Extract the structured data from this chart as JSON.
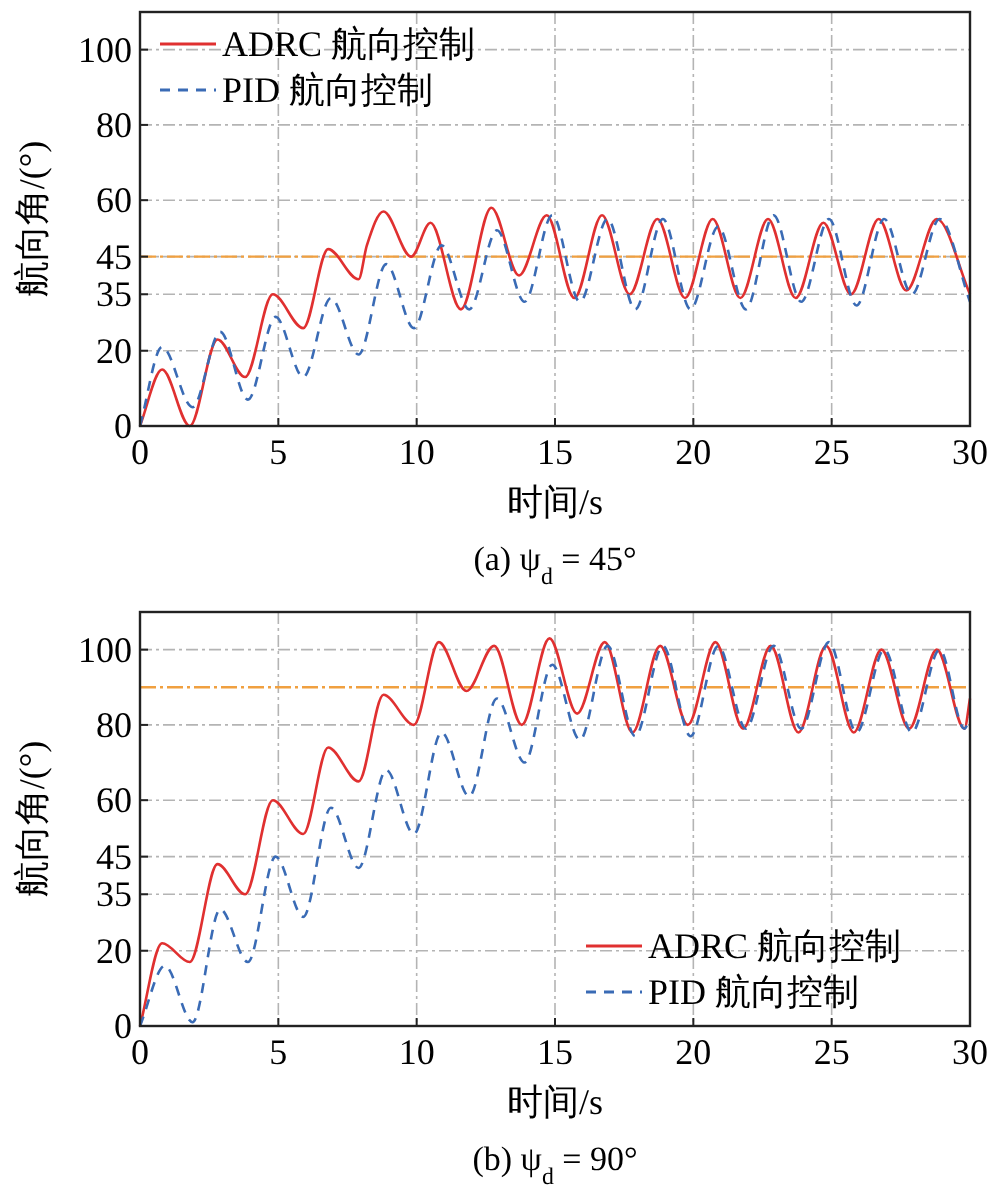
{
  "chart_data": [
    {
      "type": "line",
      "title": "(a) ψ$_{d}$ = 45°",
      "xlabel": "时间/s",
      "ylabel": "航向角/(°)",
      "xlim": [
        0,
        30
      ],
      "xticks": [
        0,
        5,
        10,
        15,
        20,
        25,
        30
      ],
      "ylim": [
        0,
        110
      ],
      "yticks": [
        0,
        20,
        35,
        45,
        60,
        80,
        100
      ],
      "grid": true,
      "legend": "top left",
      "ref_lines": [
        {
          "axis": "y",
          "value": 45,
          "color": "#f0a040"
        }
      ],
      "series": [
        {
          "name": "ADRC 航向控制",
          "color": "#e03030",
          "line_style": "solid",
          "x": [
            0,
            0.8,
            1.8,
            2.8,
            3.8,
            4.8,
            5.9,
            6.8,
            7.9,
            8.2,
            8.8,
            9.8,
            10.5,
            11.6,
            12.7,
            13.7,
            14.7,
            15.7,
            16.7,
            17.7,
            18.7,
            19.7,
            20.7,
            21.7,
            22.7,
            23.7,
            24.7,
            25.7,
            26.7,
            27.7,
            28.8,
            30
          ],
          "values": [
            0,
            15,
            0,
            23,
            13,
            35,
            26,
            47,
            39,
            48,
            57,
            45,
            54,
            31,
            58,
            40,
            56,
            34,
            56,
            35,
            55,
            34,
            55,
            34,
            55,
            34,
            54,
            35,
            55,
            36,
            55,
            35
          ]
        },
        {
          "name": "PID 航向控制",
          "color": "#3a6bb5",
          "line_style": "dashed",
          "x": [
            0,
            0.8,
            1.9,
            2.9,
            3.9,
            4.9,
            5.9,
            6.9,
            7.9,
            8.9,
            9.9,
            10.9,
            11.9,
            12.9,
            13.9,
            14.9,
            15.9,
            16.9,
            17.9,
            18.9,
            19.9,
            20.9,
            21.9,
            22.9,
            23.9,
            24.9,
            25.9,
            26.9,
            27.9,
            28.9,
            30
          ],
          "values": [
            0,
            21,
            5,
            25,
            7,
            29,
            13,
            34,
            19,
            43,
            26,
            48,
            31,
            52,
            33,
            56,
            33,
            55,
            31,
            55,
            31,
            53,
            31,
            56,
            33,
            55,
            32,
            55,
            35,
            55,
            33
          ]
        }
      ]
    },
    {
      "type": "line",
      "title": "(b) ψ$_{d}$ = 90°",
      "xlabel": "时间/s",
      "ylabel": "航向角/(°)",
      "xlim": [
        0,
        30
      ],
      "xticks": [
        0,
        5,
        10,
        15,
        20,
        25,
        30
      ],
      "ylim": [
        0,
        110
      ],
      "yticks": [
        0,
        20,
        35,
        45,
        60,
        80,
        100
      ],
      "grid": true,
      "legend": "bottom right",
      "ref_lines": [
        {
          "axis": "y",
          "value": 90,
          "color": "#f0a040"
        }
      ],
      "series": [
        {
          "name": "ADRC 航向控制",
          "color": "#e03030",
          "line_style": "solid",
          "x": [
            0,
            0.8,
            1.8,
            2.8,
            3.8,
            4.8,
            5.9,
            6.8,
            7.9,
            8.8,
            9.9,
            10.8,
            11.8,
            12.8,
            13.8,
            14.8,
            15.8,
            16.8,
            17.8,
            18.8,
            19.8,
            20.8,
            21.8,
            22.8,
            23.8,
            24.8,
            25.8,
            26.8,
            27.8,
            28.8,
            29.8,
            30
          ],
          "values": [
            0,
            22,
            17,
            43,
            35,
            60,
            51,
            74,
            65,
            88,
            80,
            102,
            89,
            101,
            80,
            103,
            83,
            102,
            78,
            101,
            80,
            102,
            79,
            101,
            78,
            101,
            78,
            100,
            79,
            100,
            79,
            87
          ]
        },
        {
          "name": "PID 航向控制",
          "color": "#3a6bb5",
          "line_style": "dashed",
          "x": [
            0,
            0.9,
            1.9,
            2.9,
            3.9,
            4.9,
            5.9,
            6.9,
            7.9,
            8.9,
            9.9,
            10.9,
            11.9,
            12.9,
            13.9,
            14.9,
            15.9,
            16.9,
            17.9,
            18.9,
            19.9,
            20.9,
            21.9,
            22.9,
            23.9,
            24.9,
            25.9,
            26.9,
            27.9,
            28.9,
            29.8,
            30
          ],
          "values": [
            0,
            16,
            1,
            31,
            17,
            45,
            29,
            58,
            42,
            68,
            51,
            78,
            61,
            87,
            70,
            96,
            76,
            101,
            77,
            101,
            77,
            101,
            79,
            101,
            79,
            102,
            78,
            100,
            78,
            100,
            79,
            82
          ]
        }
      ]
    }
  ]
}
